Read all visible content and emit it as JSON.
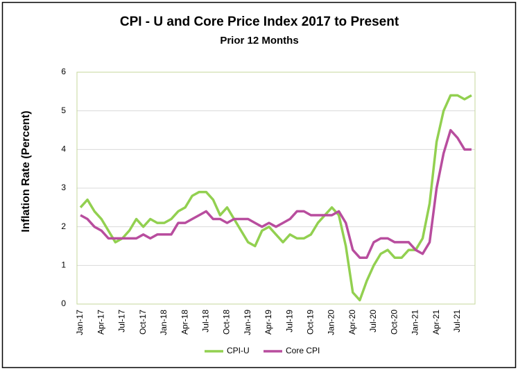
{
  "chart_data": {
    "type": "line",
    "title": "CPI - U and Core Price Index 2017 to Present",
    "subtitle": "Prior 12 Months",
    "y_label": "Inflation Rate (Percent)",
    "categories": [
      "Jan-17",
      null,
      null,
      "Apr-17",
      null,
      null,
      "Jul-17",
      null,
      null,
      "Oct-17",
      null,
      null,
      "Jan-18",
      null,
      null,
      "Apr-18",
      null,
      null,
      "Jul-18",
      null,
      null,
      "Oct-18",
      null,
      null,
      "Jan-19",
      null,
      null,
      "Apr-19",
      null,
      null,
      "Jul-19",
      null,
      null,
      "Oct-19",
      null,
      null,
      "Jan-20",
      null,
      null,
      "Apr-20",
      null,
      null,
      "Jul-20",
      null,
      null,
      "Oct-20",
      null,
      null,
      "Jan-21",
      null,
      null,
      "Apr-21",
      null,
      null,
      "Jul-21",
      null,
      null
    ],
    "series": [
      {
        "name": "CPI-U",
        "color": "#92d050",
        "values": [
          2.5,
          2.7,
          2.4,
          2.2,
          1.9,
          1.6,
          1.7,
          1.9,
          2.2,
          2.0,
          2.2,
          2.1,
          2.1,
          2.2,
          2.4,
          2.5,
          2.8,
          2.9,
          2.9,
          2.7,
          2.3,
          2.5,
          2.2,
          1.9,
          1.6,
          1.5,
          1.9,
          2.0,
          1.8,
          1.6,
          1.8,
          1.7,
          1.7,
          1.8,
          2.1,
          2.3,
          2.5,
          2.3,
          1.5,
          0.3,
          0.1,
          0.6,
          1.0,
          1.3,
          1.4,
          1.2,
          1.2,
          1.4,
          1.4,
          1.7,
          2.6,
          4.2,
          5.0,
          5.4,
          5.4,
          5.3,
          5.4
        ]
      },
      {
        "name": "Core CPI",
        "color": "#b84d9e",
        "values": [
          2.3,
          2.2,
          2.0,
          1.9,
          1.7,
          1.7,
          1.7,
          1.7,
          1.7,
          1.8,
          1.7,
          1.8,
          1.8,
          1.8,
          2.1,
          2.1,
          2.2,
          2.3,
          2.4,
          2.2,
          2.2,
          2.1,
          2.2,
          2.2,
          2.2,
          2.1,
          2.0,
          2.1,
          2.0,
          2.1,
          2.2,
          2.4,
          2.4,
          2.3,
          2.3,
          2.3,
          2.3,
          2.4,
          2.1,
          1.4,
          1.2,
          1.2,
          1.6,
          1.7,
          1.7,
          1.6,
          1.6,
          1.6,
          1.4,
          1.3,
          1.6,
          3.0,
          3.9,
          4.5,
          4.3,
          4.0,
          4.0
        ]
      }
    ],
    "ylim": [
      0,
      6
    ],
    "yticks": [
      0,
      1,
      2,
      3,
      4,
      5,
      6
    ],
    "grid": true,
    "legend": "bottom"
  }
}
